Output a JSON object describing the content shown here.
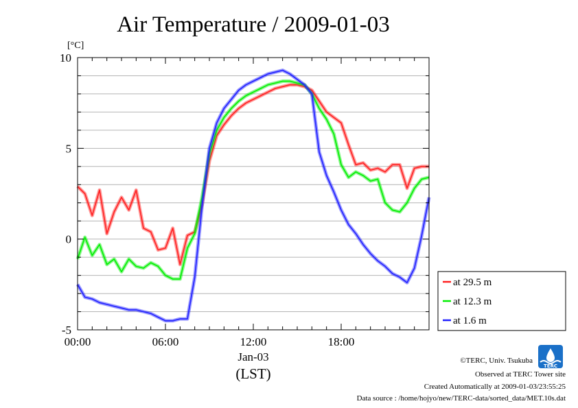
{
  "chart_data": {
    "type": "line",
    "title": "Air Temperature / 2009-01-03",
    "ylabel": "[°C]",
    "x_tick_labels": [
      "00:00",
      "06:00",
      "12:00",
      "18:00"
    ],
    "x_date_label": "Jan-03",
    "x_axis_label": "(LST)",
    "y_tick_labels": [
      "-5",
      "0",
      "5",
      "10"
    ],
    "ylim": [
      -5,
      10
    ],
    "xlim_hours": [
      0,
      24
    ],
    "grid": true,
    "legend_position": "right",
    "series": [
      {
        "name": "at 29.5 m",
        "color": "#ff2020",
        "x": [
          0,
          0.5,
          1,
          1.5,
          2,
          2.5,
          3,
          3.5,
          4,
          4.5,
          5,
          5.5,
          6,
          6.5,
          7,
          7.5,
          8,
          8.5,
          9,
          9.5,
          10,
          10.5,
          11,
          11.5,
          12,
          12.5,
          13,
          13.5,
          14,
          14.5,
          15,
          15.5,
          16,
          16.5,
          17,
          17.5,
          18,
          18.5,
          19,
          19.5,
          20,
          20.5,
          21,
          21.5,
          22,
          22.5,
          23,
          23.5,
          24
        ],
        "values": [
          2.9,
          2.5,
          1.3,
          2.7,
          0.3,
          1.5,
          2.3,
          1.6,
          2.7,
          0.6,
          0.4,
          -0.6,
          -0.5,
          0.6,
          -1.4,
          0.2,
          0.4,
          1.9,
          4.3,
          5.7,
          6.3,
          6.8,
          7.2,
          7.5,
          7.7,
          7.9,
          8.1,
          8.3,
          8.4,
          8.5,
          8.5,
          8.4,
          8.2,
          7.6,
          7.0,
          6.7,
          6.4,
          5.2,
          4.1,
          4.2,
          3.8,
          3.9,
          3.7,
          4.1,
          4.1,
          2.8,
          3.9,
          4.0,
          4.0
        ]
      },
      {
        "name": "at 12.3 m",
        "color": "#00ee00",
        "x": [
          0,
          0.5,
          1,
          1.5,
          2,
          2.5,
          3,
          3.5,
          4,
          4.5,
          5,
          5.5,
          6,
          6.5,
          7,
          7.5,
          8,
          8.5,
          9,
          9.5,
          10,
          10.5,
          11,
          11.5,
          12,
          12.5,
          13,
          13.5,
          14,
          14.5,
          15,
          15.5,
          16,
          16.5,
          17,
          17.5,
          18,
          18.5,
          19,
          19.5,
          20,
          20.5,
          21,
          21.5,
          22,
          22.5,
          23,
          23.5,
          24
        ],
        "values": [
          -1.1,
          0.1,
          -0.9,
          -0.3,
          -1.4,
          -1.1,
          -1.8,
          -1.1,
          -1.5,
          -1.6,
          -1.3,
          -1.5,
          -2.0,
          -2.2,
          -2.2,
          -0.5,
          0.3,
          2.3,
          4.7,
          6.0,
          6.7,
          7.2,
          7.6,
          7.9,
          8.1,
          8.3,
          8.5,
          8.6,
          8.7,
          8.7,
          8.6,
          8.5,
          8.0,
          7.2,
          6.6,
          5.8,
          4.1,
          3.4,
          3.7,
          3.5,
          3.2,
          3.3,
          2.0,
          1.6,
          1.5,
          2.0,
          2.8,
          3.3,
          3.4
        ]
      },
      {
        "name": "at 1.6 m",
        "color": "#2020ff",
        "x": [
          0,
          0.5,
          1,
          1.5,
          2,
          2.5,
          3,
          3.5,
          4,
          4.5,
          5,
          5.5,
          6,
          6.5,
          7,
          7.5,
          8,
          8.5,
          9,
          9.5,
          10,
          10.5,
          11,
          11.5,
          12,
          12.5,
          13,
          13.5,
          14,
          14.5,
          15,
          15.5,
          16,
          16.5,
          17,
          17.5,
          18,
          18.5,
          19,
          19.5,
          20,
          20.5,
          21,
          21.5,
          22,
          22.5,
          23,
          23.5,
          24
        ],
        "values": [
          -2.5,
          -3.2,
          -3.3,
          -3.5,
          -3.6,
          -3.7,
          -3.8,
          -3.9,
          -3.9,
          -4.0,
          -4.1,
          -4.3,
          -4.5,
          -4.5,
          -4.4,
          -4.4,
          -2.1,
          1.8,
          5.0,
          6.4,
          7.2,
          7.7,
          8.2,
          8.5,
          8.7,
          8.9,
          9.1,
          9.2,
          9.3,
          9.1,
          8.8,
          8.5,
          8.0,
          4.8,
          3.5,
          2.6,
          1.6,
          0.8,
          0.3,
          -0.3,
          -0.8,
          -1.2,
          -1.5,
          -1.9,
          -2.1,
          -2.4,
          -1.6,
          0.2,
          2.3
        ]
      }
    ]
  },
  "footer": {
    "copyright": "©TERC, Univ. Tsukuba",
    "observed": "Observed at TERC Tower site",
    "created": "Created Automatically at 2009-01-03/23:55:25",
    "source": "Data source : /home/hojyo/new/TERC-data/sorted_data/MET.10s.dat",
    "logo_text": "TERC"
  }
}
